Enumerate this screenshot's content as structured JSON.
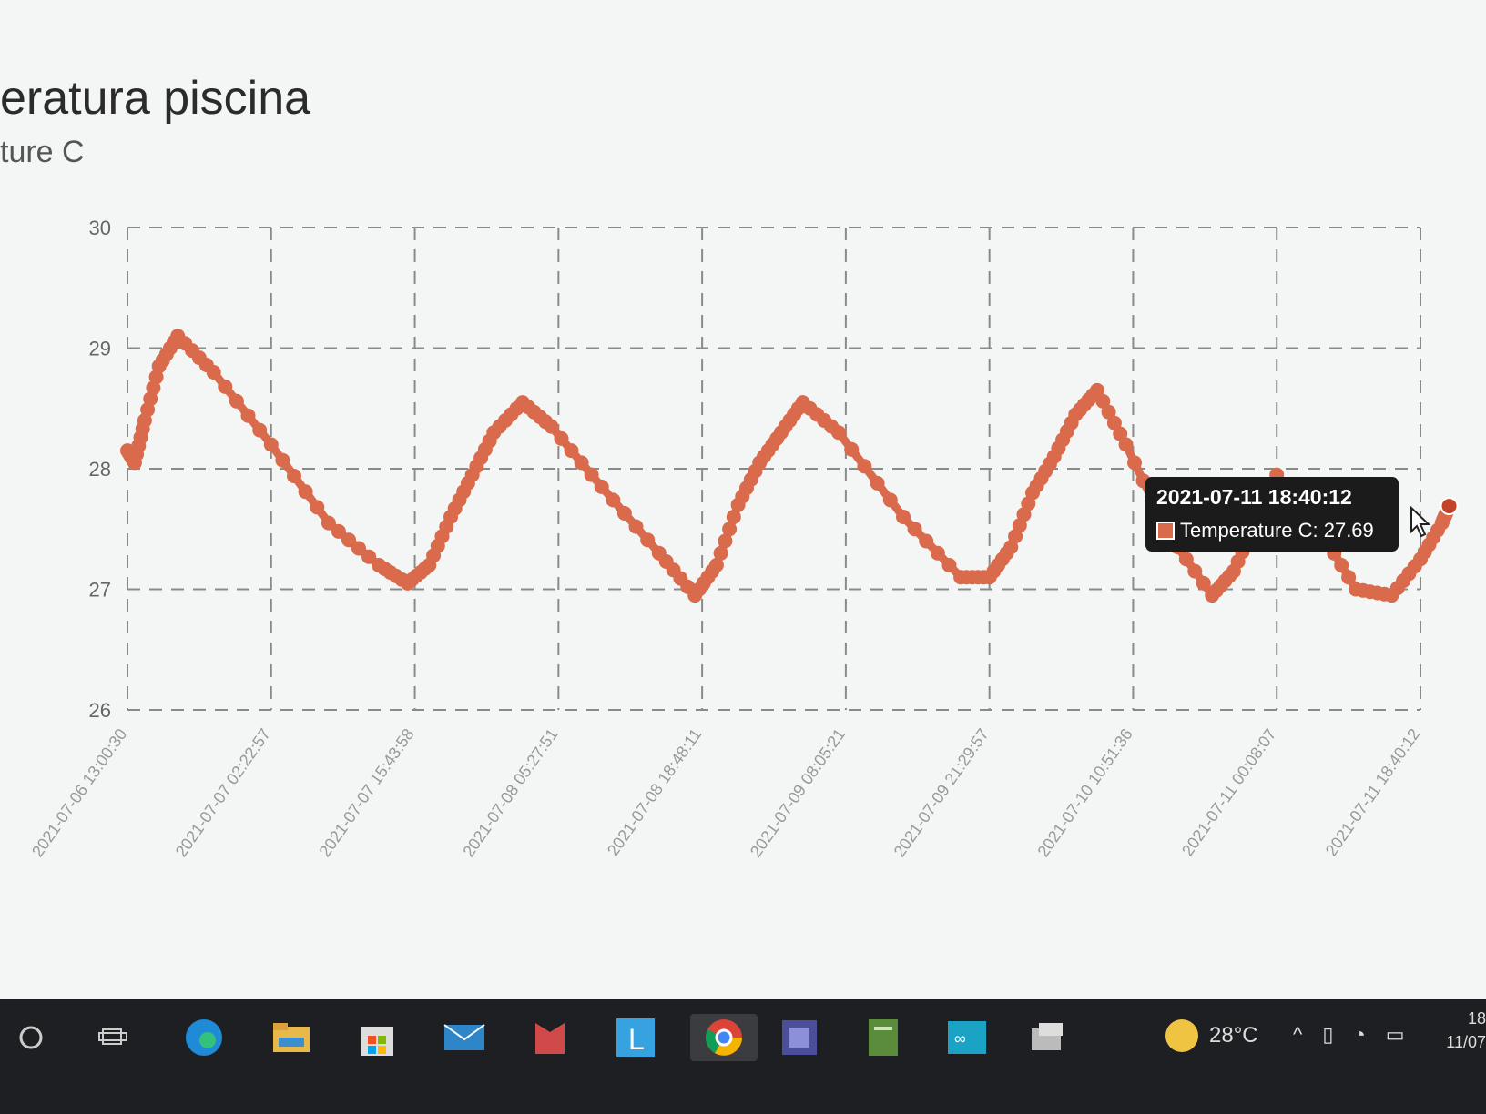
{
  "header": {
    "title": "eratura piscina",
    "subtitle": "ture C"
  },
  "chart_data": {
    "type": "line",
    "title": "eratura piscina",
    "ylabel": "ture C",
    "xlabel": "",
    "ylim": [
      26,
      30
    ],
    "y_ticks": [
      "26",
      "27",
      "28",
      "29",
      "30"
    ],
    "x": [
      "2021-07-06 13:00:30",
      "2021-07-07 02:22:57",
      "2021-07-07 15:43:58",
      "2021-07-08 05:27:51",
      "2021-07-08 18:48:11",
      "2021-07-09 08:05:21",
      "2021-07-09 21:29:57",
      "2021-07-10 10:51:36",
      "2021-07-11 00:08:07",
      "2021-07-11 18:40:12"
    ],
    "grid": true,
    "legend": "none",
    "color": "#d96a4c",
    "series": [
      {
        "name": "Temperature C",
        "points": [
          [
            0.0,
            28.15
          ],
          [
            0.05,
            28.05
          ],
          [
            0.12,
            28.4
          ],
          [
            0.22,
            28.85
          ],
          [
            0.35,
            29.1
          ],
          [
            0.6,
            28.8
          ],
          [
            1.0,
            28.2
          ],
          [
            1.4,
            27.55
          ],
          [
            1.75,
            27.2
          ],
          [
            1.95,
            27.05
          ],
          [
            2.1,
            27.2
          ],
          [
            2.25,
            27.6
          ],
          [
            2.4,
            27.95
          ],
          [
            2.55,
            28.3
          ],
          [
            2.75,
            28.55
          ],
          [
            2.95,
            28.35
          ],
          [
            3.3,
            27.85
          ],
          [
            3.7,
            27.3
          ],
          [
            3.95,
            26.95
          ],
          [
            4.1,
            27.2
          ],
          [
            4.25,
            27.7
          ],
          [
            4.4,
            28.05
          ],
          [
            4.55,
            28.3
          ],
          [
            4.7,
            28.55
          ],
          [
            4.95,
            28.3
          ],
          [
            5.4,
            27.6
          ],
          [
            5.8,
            27.1
          ],
          [
            6.0,
            27.1
          ],
          [
            6.15,
            27.35
          ],
          [
            6.3,
            27.8
          ],
          [
            6.45,
            28.1
          ],
          [
            6.6,
            28.45
          ],
          [
            6.75,
            28.65
          ],
          [
            6.95,
            28.2
          ],
          [
            7.25,
            27.45
          ],
          [
            7.55,
            26.95
          ],
          [
            7.7,
            27.15
          ],
          [
            7.85,
            27.55
          ],
          [
            8.0,
            27.95
          ],
          [
            8.3,
            27.5
          ],
          [
            8.55,
            27.0
          ],
          [
            8.8,
            26.95
          ],
          [
            9.0,
            27.25
          ],
          [
            9.15,
            27.55
          ],
          [
            9.2,
            27.69
          ]
        ]
      }
    ],
    "tooltip": {
      "title": "2021-07-11 18:40:12",
      "label": "Temperature C: 27.69"
    }
  },
  "taskbar": {
    "weather": "28°C",
    "clock_time": "18",
    "clock_date": "11/07"
  }
}
